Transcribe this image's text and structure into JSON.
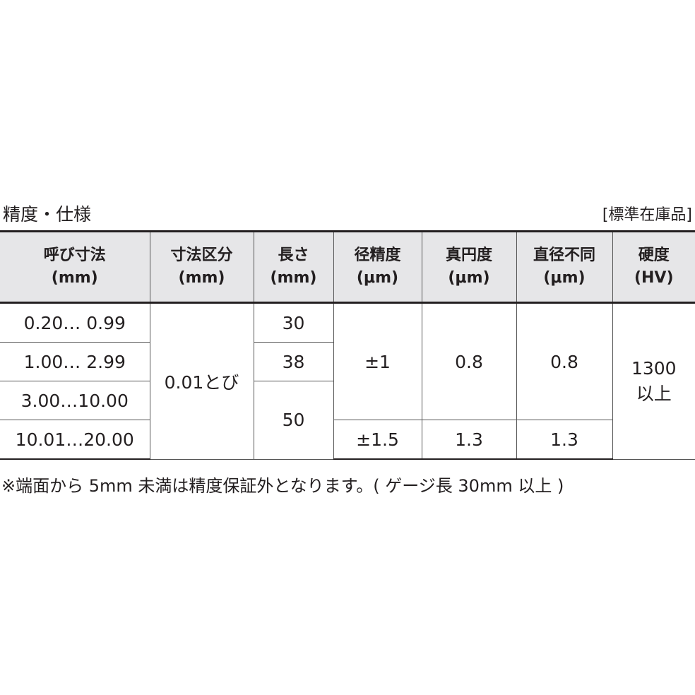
{
  "title": "精度・仕様",
  "stock_label": "[標準在庫品]",
  "headers": [
    {
      "l1": "呼び寸法",
      "l2": "(mm)"
    },
    {
      "l1": "寸法区分",
      "l2": "(mm)"
    },
    {
      "l1": "長さ",
      "l2": "(mm)"
    },
    {
      "l1": "径精度",
      "l2": "(μm)"
    },
    {
      "l1": "真円度",
      "l2": "(μm)"
    },
    {
      "l1": "直径不同",
      "l2": "(μm)"
    },
    {
      "l1": "硬度",
      "l2": "(HV)"
    }
  ],
  "rows": {
    "nominal": [
      "0.20… 0.99",
      "1.00… 2.99",
      "3.00…10.00",
      "10.01…20.00"
    ],
    "increment": "0.01とび",
    "length": [
      "30",
      "38",
      "50"
    ],
    "diameter_accuracy": [
      "±1",
      "±1.5"
    ],
    "roundness": [
      "0.8",
      "1.3"
    ],
    "diameter_variation": [
      "0.8",
      "1.3"
    ],
    "hardness": {
      "l1": "1300",
      "l2": "以上"
    }
  },
  "note": "※端面から 5mm 未満は精度保証外となります。( ゲージ長 30mm 以上 )"
}
